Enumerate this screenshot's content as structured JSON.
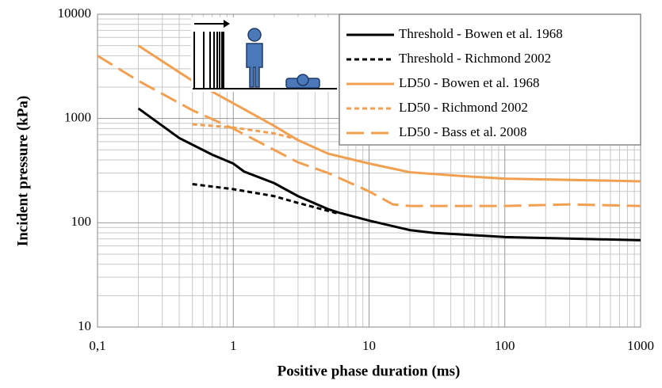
{
  "chart_data": {
    "type": "line",
    "x_label": "Positive phase duration (ms)",
    "y_label": "Incident pressure (kPa)",
    "xlog": true,
    "ylog": true,
    "grid": true,
    "minor_grid": true,
    "legend": "upper right",
    "xlim": [
      0.1,
      1000
    ],
    "xticks": [
      {
        "value": 0.1,
        "label": "0,1"
      },
      1,
      10,
      100,
      1000
    ],
    "ylim": [
      10,
      10000
    ],
    "yticks": [
      10,
      100,
      1000,
      10000
    ],
    "series": [
      {
        "name": "Threshold - Bowen et al. 1968",
        "color": "#000000",
        "linestyle": "solid",
        "x": [
          0.2,
          0.4,
          0.7,
          1,
          1.2,
          2,
          3,
          5,
          6,
          10,
          20,
          30,
          100,
          1000
        ],
        "values": [
          1250,
          650,
          450,
          370,
          310,
          240,
          180,
          135,
          125,
          105,
          85,
          80,
          73,
          68
        ]
      },
      {
        "name": "Threshold - Richmond 2002",
        "color": "#000000",
        "linestyle": "short",
        "x": [
          0.5,
          1,
          2,
          3,
          5,
          6
        ],
        "values": [
          235,
          210,
          180,
          155,
          130,
          122
        ]
      },
      {
        "name": "LD50 - Bowen et al. 1968",
        "color": "#f0a050",
        "linestyle": "solid",
        "x": [
          0.2,
          0.5,
          1,
          2,
          3,
          5,
          10,
          20,
          50,
          100,
          1000
        ],
        "values": [
          5000,
          2300,
          1400,
          850,
          620,
          460,
          370,
          305,
          280,
          265,
          250
        ]
      },
      {
        "name": "LD50 - Richmond 2002",
        "color": "#f0a050",
        "linestyle": "short",
        "x": [
          0.5,
          1,
          2,
          3
        ],
        "values": [
          880,
          820,
          720,
          630
        ]
      },
      {
        "name": "LD50 - Bass et al. 2008",
        "color": "#f0a050",
        "linestyle": "long",
        "x": [
          0.1,
          0.2,
          0.5,
          1,
          2,
          3,
          5,
          10,
          15,
          20,
          100,
          300,
          1000
        ],
        "values": [
          4000,
          2300,
          1200,
          800,
          500,
          380,
          300,
          200,
          150,
          145,
          145,
          150,
          145
        ]
      }
    ]
  }
}
